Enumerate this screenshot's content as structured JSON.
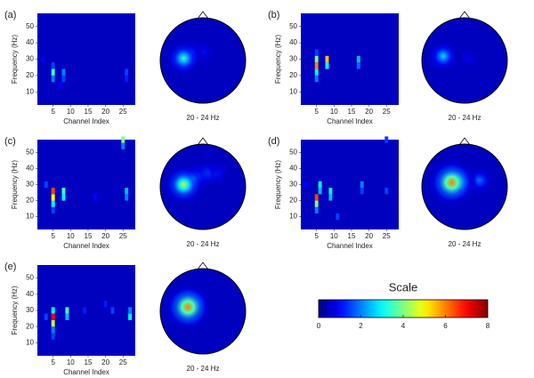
{
  "chart_data": [
    {
      "type": "heatmap",
      "panel": "(a)",
      "xlabel": "Channel Index",
      "ylabel": "Frequency (Hz)",
      "xlim": [
        0.5,
        28.5
      ],
      "ylim": [
        2,
        58
      ],
      "xticks": [
        5,
        10,
        15,
        20,
        25
      ],
      "yticks": [
        10,
        20,
        30,
        40,
        50
      ],
      "background": 0.5,
      "cells": [
        {
          "x": 2,
          "y": 30,
          "value": 1
        },
        {
          "x": 7,
          "y": 14,
          "value": 1
        },
        {
          "x": 5,
          "y": 26,
          "value": 1.5
        },
        {
          "x": 8,
          "y": 18,
          "value": 1.5
        },
        {
          "x": 26,
          "y": 22,
          "value": 1.5
        },
        {
          "x": 26,
          "y": 18,
          "value": 1.2
        },
        {
          "x": 5,
          "y": 18,
          "value": 2
        },
        {
          "x": 8,
          "y": 22,
          "value": 2
        },
        {
          "x": 5,
          "y": 22,
          "value": 3.5
        }
      ]
    },
    {
      "type": "topoplot",
      "label": "20 - 24 Hz",
      "background": 0.5,
      "sources": [
        {
          "x": 0.0,
          "y": 0.2,
          "value": 1.2
        },
        {
          "x": -0.25,
          "y": 0.2,
          "value": 1.5
        },
        {
          "x": -0.45,
          "y": 0.05,
          "value": 3.5
        }
      ]
    },
    {
      "type": "heatmap",
      "panel": "(b)",
      "xlabel": "Channel Index",
      "ylabel": "Frequency (Hz)",
      "xlim": [
        0.5,
        28.5
      ],
      "ylim": [
        2,
        58
      ],
      "xticks": [
        5,
        10,
        15,
        20,
        25
      ],
      "yticks": [
        10,
        20,
        30,
        40,
        50
      ],
      "background": 0.5,
      "cells": [
        {
          "x": 5,
          "y": 34,
          "value": 1.5
        },
        {
          "x": 17,
          "y": 26,
          "value": 1.8
        },
        {
          "x": 5,
          "y": 18,
          "value": 2
        },
        {
          "x": 17,
          "y": 30,
          "value": 2.5
        },
        {
          "x": 5,
          "y": 22,
          "value": 3
        },
        {
          "x": 8,
          "y": 26,
          "value": 3
        },
        {
          "x": 5,
          "y": 30,
          "value": 4
        },
        {
          "x": 8,
          "y": 30,
          "value": 5.5
        },
        {
          "x": 5,
          "y": 26,
          "value": 6
        }
      ]
    },
    {
      "type": "topoplot",
      "label": "20 - 24 Hz",
      "background": 0.5,
      "sources": [
        {
          "x": 0.1,
          "y": 0.05,
          "value": 0.9
        },
        {
          "x": -0.5,
          "y": 0.1,
          "value": 2.8
        }
      ]
    },
    {
      "type": "heatmap",
      "panel": "(c)",
      "xlabel": "Channel Index",
      "ylabel": "Frequency (Hz)",
      "xlim": [
        0.5,
        28.5
      ],
      "ylim": [
        2,
        58
      ],
      "xticks": [
        5,
        10,
        15,
        20,
        25
      ],
      "yticks": [
        10,
        20,
        30,
        40,
        50
      ],
      "background": 0.5,
      "cells": [
        {
          "x": 17,
          "y": 22,
          "value": 1
        },
        {
          "x": 3,
          "y": 30,
          "value": 1.5
        },
        {
          "x": 5,
          "y": 14,
          "value": 1.5
        },
        {
          "x": 25,
          "y": 54,
          "value": 2
        },
        {
          "x": 26,
          "y": 22,
          "value": 2
        },
        {
          "x": 26,
          "y": 26,
          "value": 2.5
        },
        {
          "x": 5,
          "y": 18,
          "value": 3
        },
        {
          "x": 8,
          "y": 22,
          "value": 3
        },
        {
          "x": 8,
          "y": 26,
          "value": 3.5
        },
        {
          "x": 25,
          "y": 58,
          "value": 4
        },
        {
          "x": 5,
          "y": 22,
          "value": 5
        },
        {
          "x": 5,
          "y": 26,
          "value": 6.5
        }
      ]
    },
    {
      "type": "topoplot",
      "label": "20 - 24 Hz",
      "background": 0.5,
      "sources": [
        {
          "x": 0.3,
          "y": 0.3,
          "value": 1.5
        },
        {
          "x": 0.05,
          "y": 0.3,
          "value": 2
        },
        {
          "x": -0.2,
          "y": 0.2,
          "value": 2.5
        },
        {
          "x": -0.45,
          "y": 0.05,
          "value": 4.5
        }
      ]
    },
    {
      "type": "heatmap",
      "panel": "(d)",
      "xlabel": "Channel Index",
      "ylabel": "Frequency (Hz)",
      "xlim": [
        0.5,
        28.5
      ],
      "ylim": [
        2,
        58
      ],
      "xticks": [
        5,
        10,
        15,
        20,
        25
      ],
      "yticks": [
        10,
        20,
        30,
        40,
        50
      ],
      "background": 0.5,
      "cells": [
        {
          "x": 2,
          "y": 30,
          "value": 1
        },
        {
          "x": 11,
          "y": 10,
          "value": 1.5
        },
        {
          "x": 18,
          "y": 26,
          "value": 1.5
        },
        {
          "x": 25,
          "y": 26,
          "value": 1.5
        },
        {
          "x": 25,
          "y": 58,
          "value": 1.5
        },
        {
          "x": 5,
          "y": 14,
          "value": 2
        },
        {
          "x": 18,
          "y": 30,
          "value": 2
        },
        {
          "x": 6,
          "y": 26,
          "value": 2.5
        },
        {
          "x": 9,
          "y": 22,
          "value": 2.5
        },
        {
          "x": 6,
          "y": 30,
          "value": 3
        },
        {
          "x": 9,
          "y": 26,
          "value": 3
        },
        {
          "x": 5,
          "y": 18,
          "value": 4
        },
        {
          "x": 5,
          "y": 22,
          "value": 6.5
        }
      ]
    },
    {
      "type": "topoplot",
      "label": "20 - 24 Hz",
      "background": 0.5,
      "sources": [
        {
          "x": 0.35,
          "y": 0.15,
          "value": 2
        },
        {
          "x": -0.15,
          "y": 0.12,
          "value": 3.5
        },
        {
          "x": -0.3,
          "y": 0.1,
          "value": 6
        }
      ]
    },
    {
      "type": "heatmap",
      "panel": "(e)",
      "xlabel": "Channel Index",
      "ylabel": "Frequency (Hz)",
      "xlim": [
        0.5,
        28.5
      ],
      "ylim": [
        2,
        58
      ],
      "xticks": [
        5,
        10,
        15,
        20,
        25
      ],
      "yticks": [
        10,
        20,
        30,
        40,
        50
      ],
      "background": 0.5,
      "cells": [
        {
          "x": 20,
          "y": 34,
          "value": 1.2
        },
        {
          "x": 14,
          "y": 30,
          "value": 1.2
        },
        {
          "x": 22,
          "y": 30,
          "value": 1.5
        },
        {
          "x": 3,
          "y": 26,
          "value": 1.5
        },
        {
          "x": 5,
          "y": 14,
          "value": 1.5
        },
        {
          "x": 5,
          "y": 18,
          "value": 2
        },
        {
          "x": 27,
          "y": 30,
          "value": 2
        },
        {
          "x": 9,
          "y": 26,
          "value": 2.5
        },
        {
          "x": 5,
          "y": 30,
          "value": 3
        },
        {
          "x": 27,
          "y": 26,
          "value": 3
        },
        {
          "x": 9,
          "y": 30,
          "value": 3.5
        },
        {
          "x": 5,
          "y": 22,
          "value": 4.5
        },
        {
          "x": 5,
          "y": 26,
          "value": 7
        }
      ]
    },
    {
      "type": "topoplot",
      "label": "20 - 24 Hz",
      "background": 0.5,
      "sources": [
        {
          "x": -0.15,
          "y": 0.2,
          "value": 1.5
        },
        {
          "x": -0.35,
          "y": 0.1,
          "value": 6
        }
      ]
    },
    {
      "type": "colorbar",
      "title": "Scale",
      "lim": [
        0,
        8
      ],
      "ticks": [
        0,
        2,
        4,
        6,
        8
      ]
    }
  ]
}
